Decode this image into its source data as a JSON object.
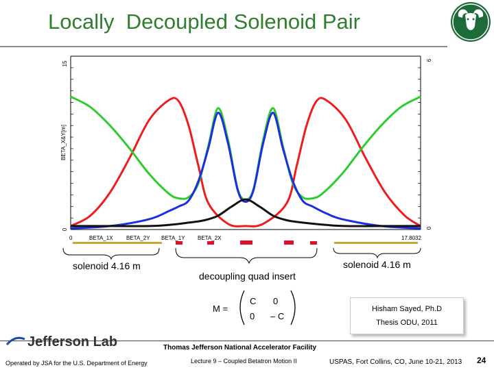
{
  "slide": {
    "title": "Locally  Decoupled Solenoid Pair",
    "page_number": "24"
  },
  "chart_data": {
    "type": "line",
    "ylabel": "BETA_X&Y[m]",
    "y_left_top_tick": "15",
    "y_left_bottom_tick": "0",
    "y_right_top_tick": "6",
    "y_right_bottom_tick": "0",
    "x_start_label": "0",
    "x_end_label": "17.8032",
    "xlim": [
      0,
      17.8032
    ],
    "ylim": [
      0,
      15
    ],
    "legend": [
      "BETA_1X",
      "BETA_2Y",
      "BETA_1Y",
      "BETA_2X"
    ],
    "series": [
      {
        "name": "BETA_1X",
        "color": "#ee1c1c",
        "x": [
          0,
          1,
          2,
          3,
          4,
          5,
          5.5,
          6,
          6.5,
          7,
          8,
          8.9,
          9.8,
          11,
          11.5,
          12,
          12.5,
          13,
          14,
          15,
          16,
          17,
          17.8032
        ],
        "values": [
          0.3,
          1.2,
          3.2,
          6.2,
          9.5,
          11.2,
          11.1,
          9.0,
          5.5,
          2.3,
          0.5,
          0.3,
          0.5,
          2.3,
          5.5,
          9.0,
          11.1,
          11.2,
          9.5,
          6.2,
          3.2,
          1.2,
          0.3
        ]
      },
      {
        "name": "BETA_2Y",
        "color": "#2ecc2e",
        "x": [
          0,
          1,
          2,
          3,
          4,
          5,
          5.5,
          6,
          6.5,
          7,
          7.5,
          8,
          8.5,
          8.9,
          9.3,
          9.8,
          10.3,
          10.8,
          11.3,
          11.8,
          12.3,
          12.8,
          13.8,
          14.8,
          15.8,
          16.8,
          17.8032
        ],
        "values": [
          11.5,
          10.6,
          9.0,
          7.0,
          4.8,
          3.1,
          2.7,
          2.8,
          4.0,
          7.2,
          10.5,
          7.8,
          3.5,
          2.6,
          3.5,
          7.8,
          10.5,
          7.2,
          4.0,
          2.8,
          2.7,
          3.1,
          4.8,
          7.0,
          9.0,
          10.6,
          11.5
        ]
      },
      {
        "name": "BETA_1Y",
        "color": "#1c2ee0",
        "x": [
          0,
          2,
          4,
          5,
          5.5,
          6,
          6.5,
          7,
          7.5,
          8,
          8.5,
          8.9,
          9.3,
          9.8,
          10.3,
          10.8,
          11.3,
          11.8,
          12.3,
          13,
          13.8,
          15.8,
          17.8032
        ],
        "values": [
          0.1,
          0.3,
          0.9,
          1.6,
          2.0,
          2.5,
          4.2,
          7.0,
          10.1,
          7.5,
          3.4,
          2.4,
          3.4,
          7.5,
          10.1,
          7.0,
          4.2,
          2.5,
          2.0,
          1.4,
          0.9,
          0.3,
          0.1
        ]
      },
      {
        "name": "BETA_2X",
        "color": "#111111",
        "x": [
          0,
          2,
          4,
          5,
          6,
          6.8,
          7.5,
          8.2,
          8.9,
          9.6,
          10.3,
          11,
          11.8,
          13,
          14,
          15.8,
          17.8032
        ],
        "values": [
          0.3,
          0.3,
          0.3,
          0.4,
          0.6,
          0.8,
          1.2,
          2.0,
          2.6,
          2.0,
          1.2,
          0.8,
          0.6,
          0.4,
          0.3,
          0.3,
          0.3
        ]
      }
    ]
  },
  "annotations": {
    "solenoid_left": "solenoid  4.16 m",
    "solenoid_right": "solenoid  4.16 m",
    "quad_insert": "decoupling quad insert",
    "matrix_label": "M =",
    "matrix": [
      "C",
      "0",
      "0",
      "– C"
    ]
  },
  "reference": {
    "line1": "Hisham  Sayed, Ph.D",
    "line2": "Thesis ODU,  2011"
  },
  "footer": {
    "lab": "Jefferson Lab",
    "facility": "Thomas Jefferson National Accelerator Facility",
    "operated_by": "Operated by JSA for the U.S. Department of Energy",
    "lecture": "Lecture 9 – Coupled Betatron Motion II",
    "course": "USPAS, Fort Collins, CO, June 10-21, 2013"
  }
}
